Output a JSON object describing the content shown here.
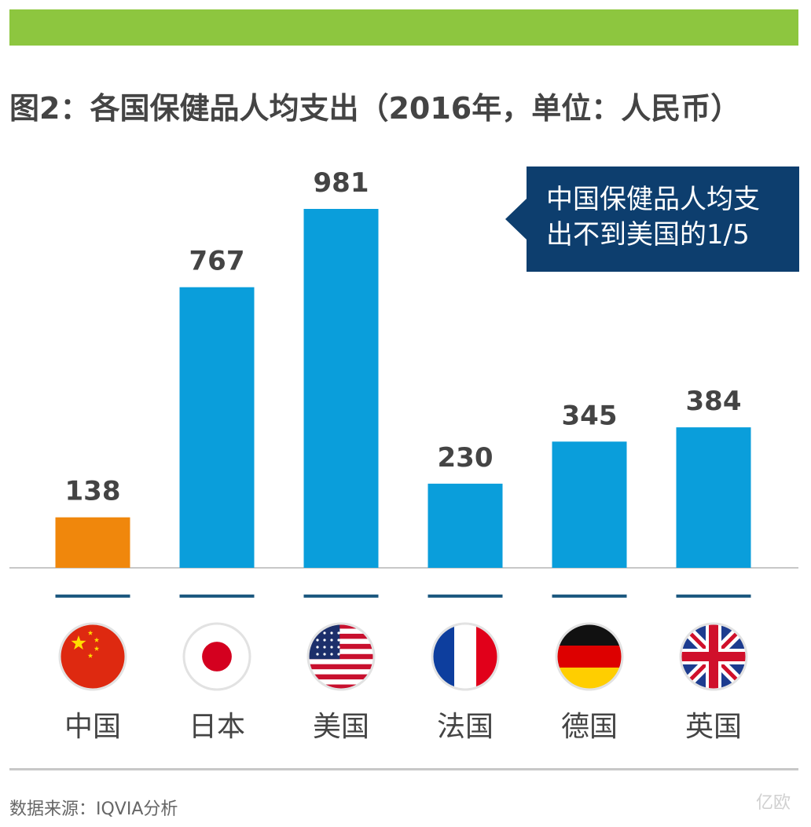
{
  "colors": {
    "top_bar": "#8dc63f",
    "title": "#444444",
    "bar_highlight": "#f0870c",
    "bar_default": "#0a9edb",
    "callout_bg": "#0d3e6e",
    "category_line": "#1e5a80",
    "axis": "#c8c8c8"
  },
  "callout": {
    "line1": "中国保健品人均支",
    "line2": "出不到美国的1/5"
  },
  "source": "数据来源：IQVIA分析",
  "watermark": "亿欧",
  "chart_data": {
    "type": "bar",
    "title": "图2：各国保健品人均支出（2016年，单位：人民币）",
    "xlabel": "",
    "ylabel": "",
    "ylim": [
      0,
      981
    ],
    "grid": false,
    "categories": [
      "中国",
      "日本",
      "美国",
      "法国",
      "德国",
      "英国"
    ],
    "values": [
      138,
      767,
      981,
      230,
      345,
      384
    ],
    "data_labels": [
      "138",
      "767",
      "981",
      "230",
      "345",
      "384"
    ],
    "bar_colors": [
      "#f0870c",
      "#0a9edb",
      "#0a9edb",
      "#0a9edb",
      "#0a9edb",
      "#0a9edb"
    ],
    "flag_icons": [
      "china-flag-icon",
      "japan-flag-icon",
      "usa-flag-icon",
      "france-flag-icon",
      "germany-flag-icon",
      "uk-flag-icon"
    ]
  }
}
